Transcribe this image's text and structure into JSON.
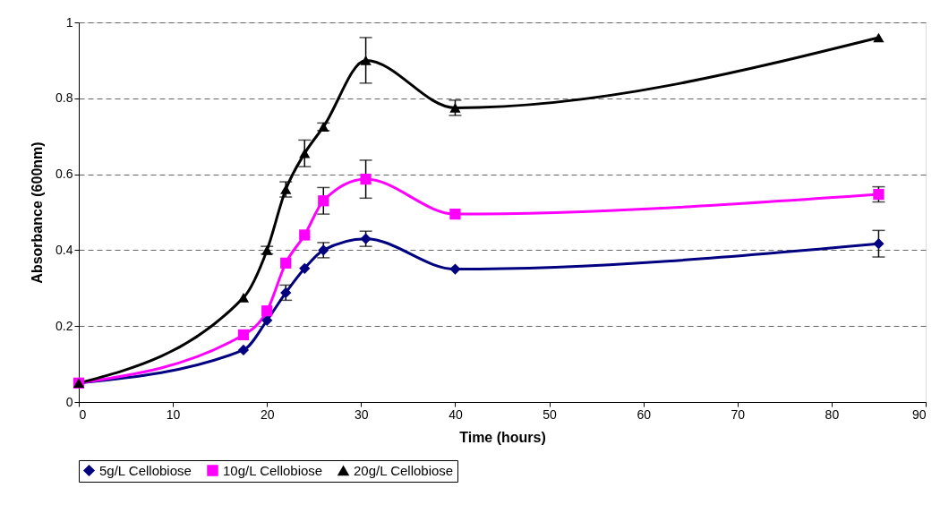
{
  "chart_data": {
    "type": "line",
    "xlabel": "Time (hours)",
    "ylabel": "Absorbance (600nm)",
    "x": [
      0,
      17.5,
      20,
      22,
      24,
      26,
      30.5,
      40,
      85
    ],
    "series": [
      {
        "name": "5g/L Cellobiose",
        "color": "#000080",
        "marker": "diamond",
        "values": [
          0.05,
          0.137,
          0.215,
          0.288,
          0.352,
          0.4,
          0.43,
          0.35,
          0.417
        ],
        "errors": [
          null,
          null,
          null,
          0.02,
          null,
          0.02,
          0.02,
          null,
          0.035
        ]
      },
      {
        "name": "10g/L Cellobiose",
        "color": "#ff00ff",
        "marker": "square",
        "values": [
          0.05,
          0.177,
          0.24,
          0.366,
          0.44,
          0.53,
          0.587,
          0.495,
          0.547
        ],
        "errors": [
          null,
          null,
          null,
          null,
          null,
          0.035,
          0.05,
          null,
          0.02
        ]
      },
      {
        "name": "20g/L Cellobiose",
        "color": "#000000",
        "marker": "triangle",
        "values": [
          0.05,
          0.275,
          0.4,
          0.56,
          0.655,
          0.725,
          0.9,
          0.775,
          0.96
        ],
        "errors": [
          null,
          null,
          0.01,
          0.02,
          0.035,
          0.01,
          0.06,
          0.02,
          null
        ]
      }
    ],
    "xlim": [
      0,
      90
    ],
    "xticks": [
      0,
      10,
      20,
      30,
      40,
      50,
      60,
      70,
      80,
      90
    ],
    "ylim": [
      0,
      1
    ],
    "yticks": [
      0,
      0.2,
      0.4,
      0.6,
      0.8,
      1
    ],
    "grid": "y",
    "legend": "bottom",
    "line_style": "solid"
  }
}
